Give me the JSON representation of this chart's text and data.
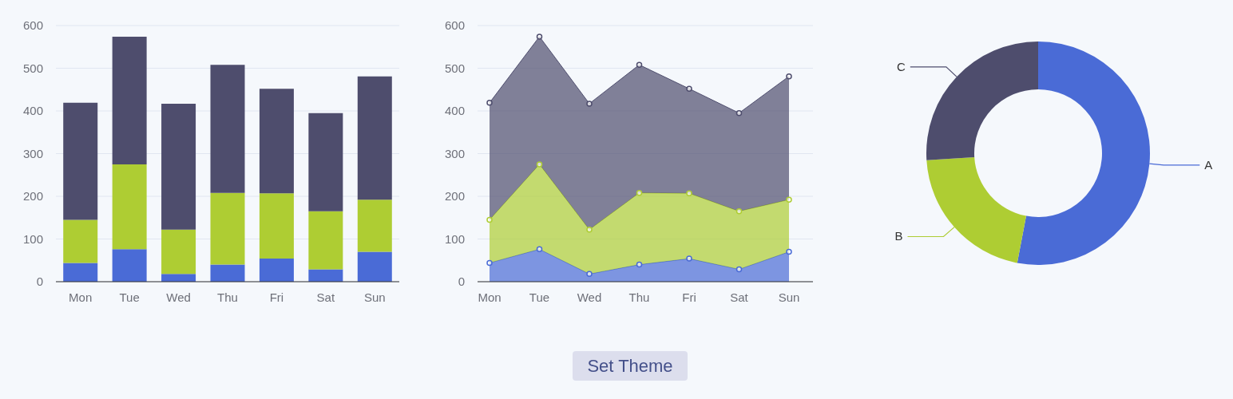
{
  "chart_data": [
    {
      "type": "bar",
      "stacked": true,
      "categories": [
        "Mon",
        "Tue",
        "Wed",
        "Thu",
        "Fri",
        "Sat",
        "Sun"
      ],
      "ylim": [
        0,
        600
      ],
      "yticks": [
        0,
        100,
        200,
        300,
        400,
        500,
        600
      ],
      "grid": "y",
      "legend": false,
      "series": [
        {
          "color": "#4a6bd6",
          "values": [
            44,
            76,
            18,
            40,
            54,
            29,
            70
          ]
        },
        {
          "color": "#aecd33",
          "values": [
            101,
            199,
            104,
            168,
            153,
            136,
            122
          ]
        },
        {
          "color": "#4e4d6d",
          "values": [
            274,
            299,
            295,
            300,
            245,
            230,
            289
          ]
        }
      ]
    },
    {
      "type": "area",
      "stacked": true,
      "marker": "circle",
      "categories": [
        "Mon",
        "Tue",
        "Wed",
        "Thu",
        "Fri",
        "Sat",
        "Sun"
      ],
      "ylim": [
        0,
        600
      ],
      "yticks": [
        0,
        100,
        200,
        300,
        400,
        500,
        600
      ],
      "grid": "y",
      "legend": false,
      "annotations": [
        "Set Theme"
      ],
      "series": [
        {
          "color": "#4a6bd6",
          "values": [
            44,
            76,
            18,
            40,
            54,
            29,
            70
          ]
        },
        {
          "color": "#aecd33",
          "values": [
            101,
            199,
            104,
            168,
            153,
            136,
            122
          ]
        },
        {
          "color": "#4e4d6d",
          "values": [
            274,
            299,
            295,
            300,
            245,
            230,
            289
          ]
        }
      ]
    },
    {
      "type": "donut",
      "categories": [
        "A",
        "B",
        "C"
      ],
      "values": [
        53,
        21,
        26
      ],
      "colors": [
        "#4a6bd6",
        "#aecd33",
        "#4e4d6d"
      ],
      "legend": false
    }
  ]
}
